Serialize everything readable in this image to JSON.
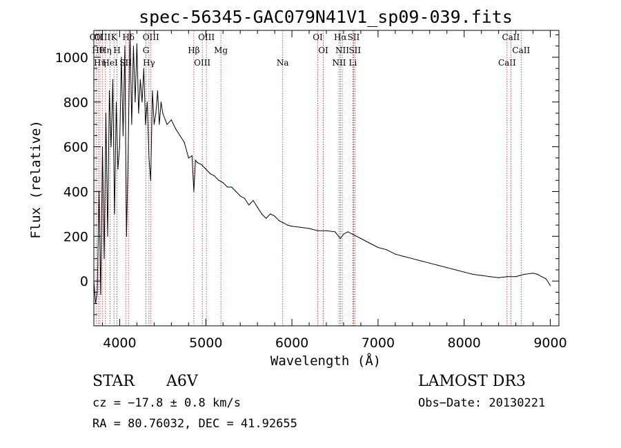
{
  "chart_data": {
    "type": "line",
    "title": "spec-56345-GAC079N41V1_sp09-039.fits",
    "xlabel": "Wavelength (Å)",
    "ylabel": "Flux (relative)",
    "xlim": [
      3700,
      9100
    ],
    "ylim": [
      -200,
      1120
    ],
    "xticks": [
      4000,
      5000,
      6000,
      7000,
      8000,
      9000
    ],
    "yticks": [
      0,
      200,
      400,
      600,
      800,
      1000
    ],
    "series": [
      {
        "name": "flux",
        "x": [
          3700,
          3720,
          3740,
          3760,
          3780,
          3800,
          3820,
          3840,
          3860,
          3880,
          3900,
          3920,
          3940,
          3960,
          3980,
          4000,
          4020,
          4040,
          4060,
          4080,
          4100,
          4120,
          4140,
          4160,
          4180,
          4200,
          4220,
          4240,
          4260,
          4280,
          4300,
          4320,
          4340,
          4360,
          4380,
          4400,
          4420,
          4440,
          4460,
          4480,
          4500,
          4550,
          4600,
          4650,
          4700,
          4750,
          4800,
          4840,
          4861,
          4880,
          4900,
          4950,
          5000,
          5050,
          5100,
          5150,
          5200,
          5250,
          5300,
          5350,
          5400,
          5450,
          5500,
          5550,
          5600,
          5650,
          5700,
          5750,
          5800,
          5850,
          5900,
          5950,
          6000,
          6100,
          6200,
          6300,
          6400,
          6500,
          6563,
          6600,
          6650,
          6700,
          6750,
          6800,
          6900,
          7000,
          7100,
          7200,
          7300,
          7400,
          7500,
          7600,
          7700,
          7800,
          7900,
          8000,
          8100,
          8200,
          8300,
          8400,
          8500,
          8600,
          8650,
          8700,
          8800,
          8850,
          8900,
          8950,
          9000
        ],
        "values": [
          0,
          -100,
          -50,
          400,
          -60,
          600,
          100,
          750,
          200,
          850,
          600,
          900,
          300,
          800,
          500,
          600,
          1000,
          650,
          1050,
          200,
          600,
          1120,
          700,
          1050,
          800,
          1060,
          750,
          900,
          800,
          950,
          700,
          800,
          550,
          450,
          850,
          700,
          750,
          850,
          700,
          800,
          750,
          700,
          720,
          680,
          650,
          620,
          550,
          560,
          400,
          540,
          530,
          520,
          500,
          480,
          470,
          450,
          440,
          420,
          420,
          400,
          380,
          370,
          340,
          360,
          330,
          300,
          280,
          300,
          290,
          270,
          260,
          250,
          245,
          240,
          235,
          225,
          225,
          220,
          190,
          210,
          220,
          210,
          200,
          190,
          170,
          150,
          140,
          120,
          110,
          100,
          90,
          80,
          70,
          60,
          50,
          40,
          30,
          25,
          20,
          15,
          20,
          20,
          25,
          30,
          35,
          30,
          20,
          10,
          -20
        ]
      }
    ],
    "line_markers": [
      {
        "wavelength": 3727,
        "label": "OII"
      },
      {
        "wavelength": 3750,
        "label": "Hθ"
      },
      {
        "wavelength": 3771,
        "label": "Hη"
      },
      {
        "wavelength": 3798,
        "label": "OIII"
      },
      {
        "wavelength": 3835,
        "label": "Hη"
      },
      {
        "wavelength": 3889,
        "label": "HeI"
      },
      {
        "wavelength": 3934,
        "label": "K"
      },
      {
        "wavelength": 3969,
        "label": "H"
      },
      {
        "wavelength": 4070,
        "label": "SII"
      },
      {
        "wavelength": 4102,
        "label": "Hδ"
      },
      {
        "wavelength": 4305,
        "label": "G"
      },
      {
        "wavelength": 4340,
        "label": "Hγ"
      },
      {
        "wavelength": 4363,
        "label": "OIII"
      },
      {
        "wavelength": 4861,
        "label": "Hβ"
      },
      {
        "wavelength": 4959,
        "label": "OIII"
      },
      {
        "wavelength": 5007,
        "label": "OIII"
      },
      {
        "wavelength": 5175,
        "label": "Mg"
      },
      {
        "wavelength": 5893,
        "label": "Na"
      },
      {
        "wavelength": 6300,
        "label": "OI"
      },
      {
        "wavelength": 6364,
        "label": "OI"
      },
      {
        "wavelength": 6548,
        "label": "NII"
      },
      {
        "wavelength": 6563,
        "label": "Hα"
      },
      {
        "wavelength": 6584,
        "label": "NII"
      },
      {
        "wavelength": 6708,
        "label": "Li"
      },
      {
        "wavelength": 6716,
        "label": "SII"
      },
      {
        "wavelength": 6731,
        "label": "SII"
      },
      {
        "wavelength": 8498,
        "label": "CaII"
      },
      {
        "wavelength": 8542,
        "label": "CaII"
      },
      {
        "wavelength": 8662,
        "label": "CaII"
      }
    ]
  },
  "info": {
    "object_type": "STAR",
    "subclass": "A6V",
    "survey": "LAMOST DR3",
    "cz_line": "cz = −17.8 ± 0.8 km/s",
    "obs_date_line": "Obs−Date: 20130221",
    "radec_line": "RA =  80.76032, DEC =  41.92655"
  }
}
